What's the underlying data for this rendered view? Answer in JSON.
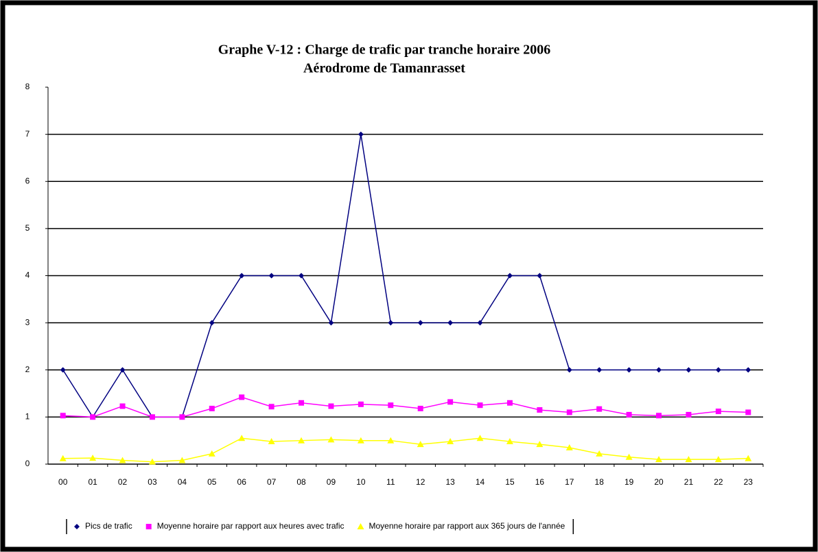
{
  "chart_data": {
    "type": "line",
    "title": "Graphe V-12 : Charge de trafic par tranche horaire 2006",
    "subtitle": "Aérodrome de Tamanrasset",
    "categories": [
      "00",
      "01",
      "02",
      "03",
      "04",
      "05",
      "06",
      "07",
      "08",
      "09",
      "10",
      "11",
      "12",
      "13",
      "14",
      "15",
      "16",
      "17",
      "18",
      "19",
      "20",
      "21",
      "22",
      "23"
    ],
    "series": [
      {
        "name": "Pics de trafic",
        "color": "#000080",
        "marker": "diamond",
        "values": [
          2,
          1,
          2,
          1,
          1,
          3,
          4,
          4,
          4,
          3,
          7,
          3,
          3,
          3,
          3,
          4,
          4,
          2,
          2,
          2,
          2,
          2,
          2,
          2
        ]
      },
      {
        "name": "Moyenne horaire par rapport aux heures avec trafic",
        "color": "#ff00ff",
        "marker": "square",
        "values": [
          1.03,
          1.0,
          1.23,
          1.0,
          1.0,
          1.18,
          1.42,
          1.22,
          1.3,
          1.23,
          1.27,
          1.25,
          1.18,
          1.32,
          1.25,
          1.3,
          1.15,
          1.1,
          1.17,
          1.05,
          1.03,
          1.05,
          1.12,
          1.1
        ]
      },
      {
        "name": "Moyenne horaire par rapport aux 365 jours de l'année",
        "color": "#ffff00",
        "marker": "triangle",
        "values": [
          0.12,
          0.13,
          0.08,
          0.05,
          0.08,
          0.22,
          0.55,
          0.48,
          0.5,
          0.52,
          0.5,
          0.5,
          0.42,
          0.48,
          0.55,
          0.48,
          0.42,
          0.35,
          0.22,
          0.15,
          0.1,
          0.1,
          0.1,
          0.12
        ]
      }
    ],
    "ylim": [
      0,
      8
    ],
    "yticks": [
      0,
      1,
      2,
      3,
      4,
      5,
      6,
      7,
      8
    ],
    "grid": true,
    "legend": "bottom"
  }
}
